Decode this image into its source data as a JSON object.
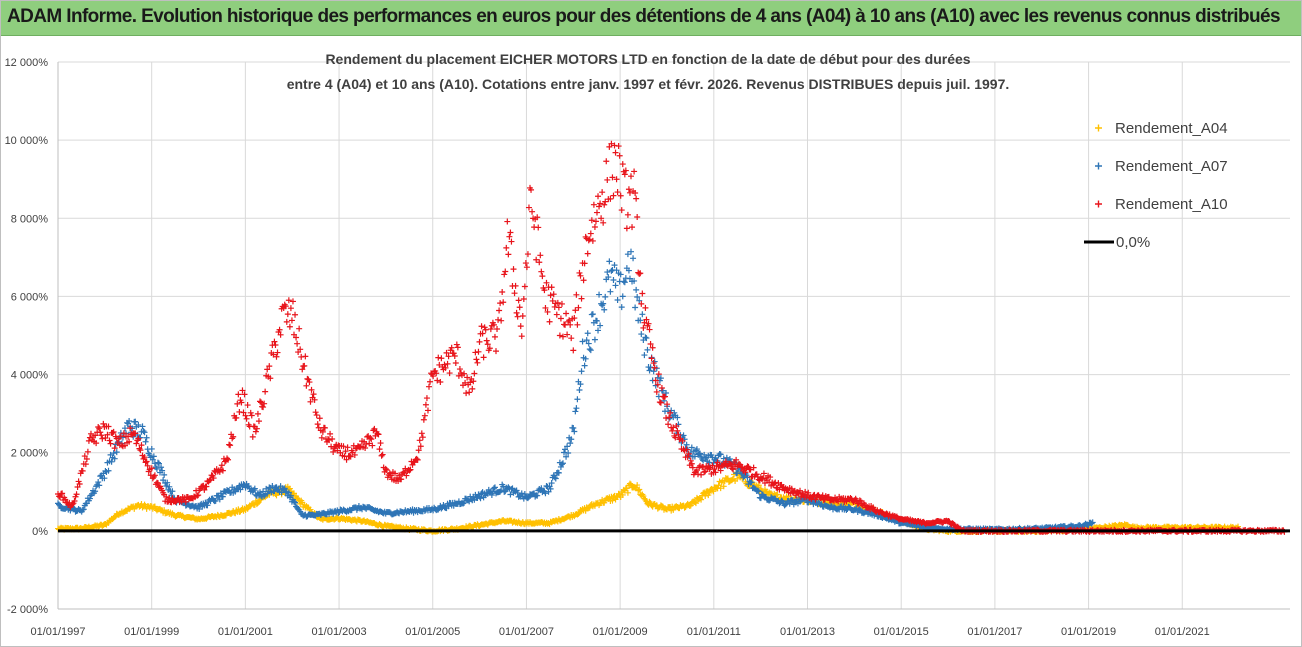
{
  "banner": {
    "title": "ADAM Informe. Evolution historique des performances en euros pour des détentions de 4 ans (A04) à 10 ans (A10) avec les revenus connus distribués"
  },
  "colors": {
    "banner": "#8fce7e",
    "A04": "#ffc000",
    "A07": "#2e75b6",
    "A10": "#e8141b",
    "zero": "#000000",
    "grid": "#d9d9d9"
  },
  "chart_data": {
    "type": "scatter",
    "title_line1": "Rendement du placement EICHER MOTORS LTD en fonction de la date de début pour des durées",
    "title_line2": "entre 4 (A04) et 10 ans (A10).  Cotations entre janv. 1997 et févr. 2026. Revenus DISTRIBUES depuis juil. 1997.",
    "x_range": [
      1997.0,
      2023.3
    ],
    "y_range": [
      -2000,
      12000
    ],
    "x_ticks": [
      {
        "year": 1997,
        "label": "01/01/1997"
      },
      {
        "year": 1999,
        "label": "01/01/1999"
      },
      {
        "year": 2001,
        "label": "01/01/2001"
      },
      {
        "year": 2003,
        "label": "01/01/2003"
      },
      {
        "year": 2005,
        "label": "01/01/2005"
      },
      {
        "year": 2007,
        "label": "01/01/2007"
      },
      {
        "year": 2009,
        "label": "01/01/2009"
      },
      {
        "year": 2011,
        "label": "01/01/2011"
      },
      {
        "year": 2013,
        "label": "01/01/2013"
      },
      {
        "year": 2015,
        "label": "01/01/2015"
      },
      {
        "year": 2017,
        "label": "01/01/2017"
      },
      {
        "year": 2019,
        "label": "01/01/2019"
      },
      {
        "year": 2021,
        "label": "01/01/2021"
      }
    ],
    "y_ticks": [
      {
        "value": 12000,
        "label": "12 000%"
      },
      {
        "value": 10000,
        "label": "10 000%"
      },
      {
        "value": 8000,
        "label": "8 000%"
      },
      {
        "value": 6000,
        "label": "6 000%"
      },
      {
        "value": 4000,
        "label": "4 000%"
      },
      {
        "value": 2000,
        "label": "2 000%"
      },
      {
        "value": 0,
        "label": "0%"
      },
      {
        "value": -2000,
        "label": "-2 000%"
      }
    ],
    "zero_line": {
      "label": "0,0%",
      "x_start": 1997.0,
      "x_end": 2023.3,
      "value": 0
    },
    "series": [
      {
        "name": "Rendement_A04",
        "color": "#ffc000",
        "x_end": 2022.2,
        "points": [
          [
            1997.0,
            50
          ],
          [
            1997.5,
            60
          ],
          [
            1998.0,
            150
          ],
          [
            1998.3,
            450
          ],
          [
            1998.7,
            650
          ],
          [
            1999.0,
            600
          ],
          [
            1999.5,
            400
          ],
          [
            2000.0,
            300
          ],
          [
            2000.5,
            400
          ],
          [
            2001.0,
            550
          ],
          [
            2001.5,
            950
          ],
          [
            2001.9,
            1050
          ],
          [
            2002.3,
            600
          ],
          [
            2002.6,
            300
          ],
          [
            2003.0,
            320
          ],
          [
            2003.5,
            250
          ],
          [
            2004.0,
            120
          ],
          [
            2004.5,
            50
          ],
          [
            2005.0,
            0
          ],
          [
            2005.5,
            50
          ],
          [
            2006.0,
            150
          ],
          [
            2006.5,
            250
          ],
          [
            2007.0,
            200
          ],
          [
            2007.5,
            200
          ],
          [
            2008.0,
            400
          ],
          [
            2008.5,
            700
          ],
          [
            2009.0,
            900
          ],
          [
            2009.3,
            1200
          ],
          [
            2009.6,
            700
          ],
          [
            2010.0,
            550
          ],
          [
            2010.5,
            650
          ],
          [
            2011.0,
            1100
          ],
          [
            2011.5,
            1400
          ],
          [
            2011.8,
            1200
          ],
          [
            2012.2,
            900
          ],
          [
            2012.8,
            800
          ],
          [
            2013.5,
            700
          ],
          [
            2014.0,
            700
          ],
          [
            2014.5,
            500
          ],
          [
            2015.0,
            250
          ],
          [
            2015.5,
            50
          ],
          [
            2016.0,
            0
          ],
          [
            2017.0,
            0
          ],
          [
            2018.0,
            0
          ],
          [
            2019.0,
            50
          ],
          [
            2019.8,
            150
          ],
          [
            2020.0,
            80
          ],
          [
            2021.0,
            80
          ],
          [
            2022.2,
            80
          ]
        ]
      },
      {
        "name": "Rendement_A07",
        "color": "#2e75b6",
        "x_end": 2019.1,
        "points": [
          [
            1997.0,
            650
          ],
          [
            1997.5,
            500
          ],
          [
            1998.0,
            1500
          ],
          [
            1998.5,
            2700
          ],
          [
            1998.8,
            2500
          ],
          [
            1999.0,
            2000
          ],
          [
            1999.5,
            800
          ],
          [
            2000.0,
            600
          ],
          [
            2000.5,
            900
          ],
          [
            2001.0,
            1200
          ],
          [
            2001.3,
            900
          ],
          [
            2001.6,
            1100
          ],
          [
            2001.9,
            1000
          ],
          [
            2002.2,
            400
          ],
          [
            2002.5,
            400
          ],
          [
            2003.0,
            500
          ],
          [
            2003.5,
            600
          ],
          [
            2004.0,
            450
          ],
          [
            2004.5,
            500
          ],
          [
            2005.0,
            550
          ],
          [
            2005.5,
            700
          ],
          [
            2006.0,
            900
          ],
          [
            2006.5,
            1100
          ],
          [
            2007.0,
            850
          ],
          [
            2007.5,
            1100
          ],
          [
            2007.8,
            1900
          ],
          [
            2008.0,
            2500
          ],
          [
            2008.2,
            4500
          ],
          [
            2008.5,
            5500
          ],
          [
            2008.8,
            6500
          ],
          [
            2009.0,
            6000
          ],
          [
            2009.2,
            7000
          ],
          [
            2009.4,
            5500
          ],
          [
            2009.6,
            4500
          ],
          [
            2010.0,
            3200
          ],
          [
            2010.5,
            2000
          ],
          [
            2011.0,
            1900
          ],
          [
            2011.5,
            1600
          ],
          [
            2012.0,
            900
          ],
          [
            2012.5,
            700
          ],
          [
            2013.0,
            800
          ],
          [
            2013.5,
            600
          ],
          [
            2014.0,
            550
          ],
          [
            2014.5,
            400
          ],
          [
            2015.0,
            200
          ],
          [
            2015.5,
            100
          ],
          [
            2016.0,
            50
          ],
          [
            2017.0,
            30
          ],
          [
            2018.0,
            60
          ],
          [
            2018.8,
            120
          ],
          [
            2019.1,
            200
          ]
        ]
      },
      {
        "name": "Rendement_A10",
        "color": "#e8141b",
        "x_end": 2023.2,
        "points": [
          [
            1997.0,
            1000
          ],
          [
            1997.3,
            600
          ],
          [
            1997.7,
            2300
          ],
          [
            1998.0,
            2600
          ],
          [
            1998.3,
            2200
          ],
          [
            1998.6,
            2500
          ],
          [
            1999.0,
            1500
          ],
          [
            1999.3,
            800
          ],
          [
            1999.8,
            800
          ],
          [
            2000.2,
            1200
          ],
          [
            2000.6,
            1800
          ],
          [
            2000.9,
            3500
          ],
          [
            2001.2,
            2500
          ],
          [
            2001.5,
            4000
          ],
          [
            2001.8,
            5500
          ],
          [
            2002.0,
            5500
          ],
          [
            2002.3,
            4000
          ],
          [
            2002.6,
            2600
          ],
          [
            2003.0,
            2000
          ],
          [
            2003.4,
            2000
          ],
          [
            2003.8,
            2500
          ],
          [
            2004.0,
            1500
          ],
          [
            2004.3,
            1300
          ],
          [
            2004.7,
            2000
          ],
          [
            2005.0,
            4000
          ],
          [
            2005.5,
            4500
          ],
          [
            2005.8,
            3500
          ],
          [
            2006.0,
            4800
          ],
          [
            2006.4,
            5000
          ],
          [
            2006.6,
            7500
          ],
          [
            2006.9,
            5200
          ],
          [
            2007.1,
            8500
          ],
          [
            2007.4,
            6000
          ],
          [
            2007.7,
            5500
          ],
          [
            2008.0,
            5000
          ],
          [
            2008.3,
            7500
          ],
          [
            2008.6,
            8500
          ],
          [
            2008.9,
            9500
          ],
          [
            2009.1,
            8500
          ],
          [
            2009.3,
            8500
          ],
          [
            2009.5,
            5500
          ],
          [
            2009.8,
            3800
          ],
          [
            2010.0,
            3000
          ],
          [
            2010.3,
            2200
          ],
          [
            2010.6,
            1500
          ],
          [
            2011.0,
            1600
          ],
          [
            2011.5,
            1700
          ],
          [
            2012.0,
            1400
          ],
          [
            2012.5,
            1100
          ],
          [
            2013.0,
            900
          ],
          [
            2013.5,
            800
          ],
          [
            2014.0,
            800
          ],
          [
            2014.5,
            500
          ],
          [
            2015.0,
            300
          ],
          [
            2015.5,
            200
          ],
          [
            2016.0,
            250
          ],
          [
            2016.3,
            0
          ],
          [
            2017.0,
            0
          ],
          [
            2018.0,
            0
          ],
          [
            2019.0,
            0
          ],
          [
            2020.0,
            0
          ],
          [
            2021.0,
            0
          ],
          [
            2022.0,
            0
          ],
          [
            2023.2,
            0
          ]
        ]
      }
    ],
    "legend": [
      {
        "name": "Rendement_A04",
        "marker": "plus",
        "color": "#ffc000"
      },
      {
        "name": "Rendement_A07",
        "marker": "plus",
        "color": "#2e75b6"
      },
      {
        "name": "Rendement_A10",
        "marker": "plus",
        "color": "#e8141b"
      },
      {
        "name": "0,0%",
        "marker": "line",
        "color": "#000000"
      }
    ]
  }
}
